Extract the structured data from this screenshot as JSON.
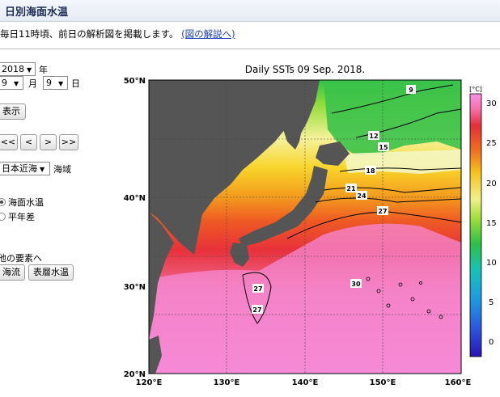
{
  "header": {
    "title": "日別海面水温"
  },
  "intro": {
    "text": "毎日11時頃、前日の解析図を掲載します。",
    "link": "(図の解説へ)"
  },
  "controls": {
    "year_value": "2018",
    "year_unit": "年",
    "month_value": "9",
    "month_unit": "月",
    "day_value": "9",
    "day_unit": "日",
    "show_button": "表示",
    "nav": [
      "<<",
      "<",
      ">",
      ">>"
    ],
    "area_value": "日本近海",
    "area_unit": "海域",
    "radio_sst": "海面水温",
    "radio_anom": "平年差",
    "other_label": "他の要素へ",
    "current_button": "海流",
    "subsurface_button": "表層水温"
  },
  "map": {
    "title": "Daily SSTs 09 Sep. 2018.",
    "lat_labels": [
      "50°N",
      "40°N",
      "30°N",
      "20°N"
    ],
    "lon_labels": [
      "120°E",
      "130°E",
      "140°E",
      "150°E",
      "160°E"
    ],
    "colorbar_unit": "[°C]",
    "colorbar_ticks": [
      "30",
      "25",
      "20",
      "15",
      "10",
      "5",
      "0"
    ],
    "contour_labels": [
      "9",
      "12",
      "15",
      "18",
      "21",
      "24",
      "27",
      "27",
      "27",
      "30"
    ],
    "colors": {
      "land": "#555555",
      "frame": "#000000"
    }
  }
}
